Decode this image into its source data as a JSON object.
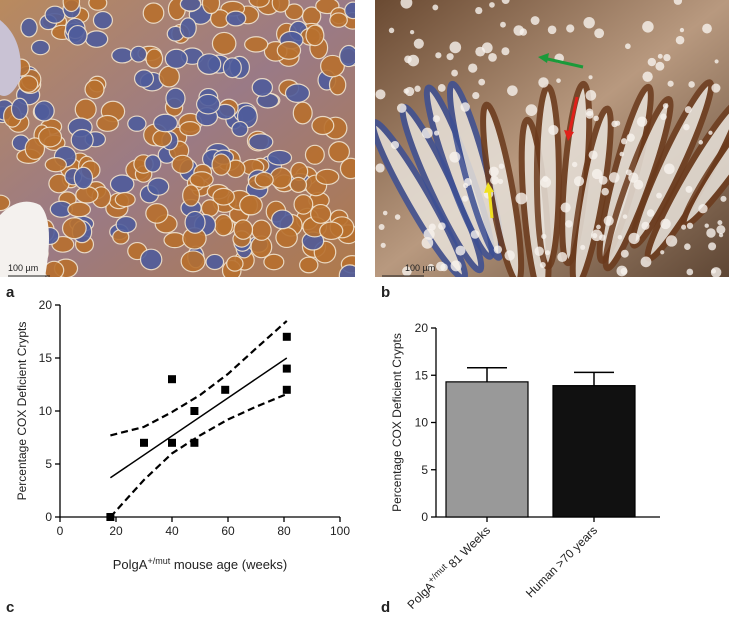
{
  "panels": {
    "a": {
      "label": "a",
      "scale_bar": "100 µm"
    },
    "b": {
      "label": "b",
      "scale_bar": "100 µm"
    },
    "c": {
      "label": "c"
    },
    "d": {
      "label": "d"
    }
  },
  "chart_data": [
    {
      "type": "scatter",
      "ylabel": "Percentage COX Deficient Crypts",
      "xlabel": {
        "text": "PolgA",
        "sup": "+/mut",
        "rest": " mouse age (weeks)"
      },
      "points": {
        "x": [
          18,
          30,
          40,
          40,
          48,
          48,
          59,
          81,
          81,
          81
        ],
        "y": [
          0,
          7,
          13,
          7,
          10,
          7,
          12,
          17,
          14,
          12
        ],
        "color": "#000000"
      },
      "fit": {
        "x": [
          18,
          81
        ],
        "y": [
          3.7,
          15
        ]
      },
      "band_upper": {
        "x": [
          18,
          30,
          40,
          50,
          60,
          70,
          81
        ],
        "y": [
          7.7,
          8.5,
          9.9,
          11.5,
          13.5,
          15.9,
          18.5
        ]
      },
      "band_lower": {
        "x": [
          18,
          30,
          40,
          50,
          60,
          70,
          81
        ],
        "y": [
          0,
          3.5,
          6.0,
          7.7,
          9.2,
          10.4,
          11.6
        ]
      },
      "xlim": [
        0,
        100
      ],
      "xticks": [
        0,
        20,
        40,
        60,
        80,
        100
      ],
      "ylim": [
        0,
        20
      ],
      "yticks": [
        0,
        5,
        10,
        15,
        20
      ]
    },
    {
      "type": "bar",
      "ylabel": "Percentage COX Deficient Crypts",
      "categories": [
        {
          "text": "PolgA",
          "sup": "+/mut",
          "rest": " 81 Weeks"
        },
        {
          "text": "Human >70 years"
        }
      ],
      "values": [
        14.3,
        13.9
      ],
      "errors": [
        1.5,
        1.4
      ],
      "colors": [
        "#999999",
        "#111111"
      ],
      "ylim": [
        0,
        20
      ],
      "yticks": [
        0,
        5,
        10,
        15,
        20
      ]
    }
  ]
}
